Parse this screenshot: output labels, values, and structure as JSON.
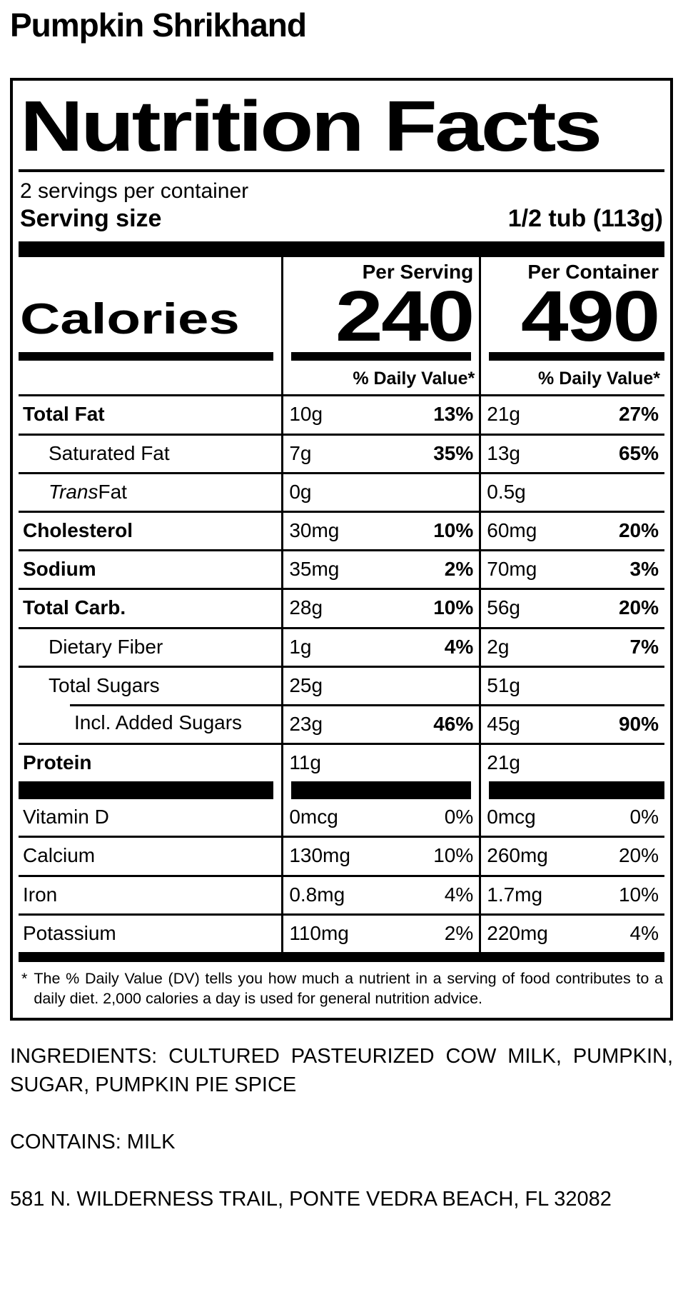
{
  "page": {
    "title": "Pumpkin Shrikhand"
  },
  "colors": {
    "ink": "#000000",
    "paper": "#ffffff"
  },
  "label": {
    "title": "Nutrition Facts",
    "servings_per_container": "2 servings per container",
    "serving_size_label": "Serving size",
    "serving_size_value": "1/2 tub (113g)",
    "calories_label": "Calories",
    "columns": {
      "serving": "Per Serving",
      "container": "Per Container"
    },
    "calories": {
      "per_serving": "240",
      "per_container": "490"
    },
    "daily_value_header": "% Daily Value*",
    "nutrients": [
      {
        "name": "Total Fat",
        "indent": 0,
        "name_bold": true,
        "serving_amount": "10g",
        "serving_dv": "13%",
        "container_amount": "21g",
        "container_dv": "27%",
        "dv_bold": true,
        "line_above": "full"
      },
      {
        "name": "Saturated Fat",
        "indent": 1,
        "name_bold": false,
        "serving_amount": "7g",
        "serving_dv": "35%",
        "container_amount": "13g",
        "container_dv": "65%",
        "dv_bold": true,
        "line_above": "full"
      },
      {
        "name_italic": "Trans",
        "name_rest": " Fat",
        "indent": 1,
        "name_bold": false,
        "serving_amount": "0g",
        "serving_dv": "",
        "container_amount": "0.5g",
        "container_dv": "",
        "dv_bold": false,
        "line_above": "full"
      },
      {
        "name": "Cholesterol",
        "indent": 0,
        "name_bold": true,
        "serving_amount": "30mg",
        "serving_dv": "10%",
        "container_amount": "60mg",
        "container_dv": "20%",
        "dv_bold": true,
        "line_above": "full"
      },
      {
        "name": "Sodium",
        "indent": 0,
        "name_bold": true,
        "serving_amount": "35mg",
        "serving_dv": "2%",
        "container_amount": "70mg",
        "container_dv": "3%",
        "dv_bold": true,
        "line_above": "full"
      },
      {
        "name": "Total Carb.",
        "indent": 0,
        "name_bold": true,
        "serving_amount": "28g",
        "serving_dv": "10%",
        "container_amount": "56g",
        "container_dv": "20%",
        "dv_bold": true,
        "line_above": "full"
      },
      {
        "name": "Dietary Fiber",
        "indent": 1,
        "name_bold": false,
        "serving_amount": "1g",
        "serving_dv": "4%",
        "container_amount": "2g",
        "container_dv": "7%",
        "dv_bold": true,
        "line_above": "full"
      },
      {
        "name": "Total Sugars",
        "indent": 1,
        "name_bold": false,
        "serving_amount": "25g",
        "serving_dv": "",
        "container_amount": "51g",
        "container_dv": "",
        "dv_bold": false,
        "line_above": "full"
      },
      {
        "name": "Incl. Added Sugars",
        "indent": 2,
        "name_bold": false,
        "serving_amount": "23g",
        "serving_dv": "46%",
        "container_amount": "45g",
        "container_dv": "90%",
        "dv_bold": true,
        "line_above": "indented"
      },
      {
        "name": "Protein",
        "indent": 0,
        "name_bold": true,
        "serving_amount": "11g",
        "serving_dv": "",
        "container_amount": "21g",
        "container_dv": "",
        "dv_bold": false,
        "line_above": "full"
      }
    ],
    "vitamins": [
      {
        "name": "Vitamin D",
        "serving_amount": "0mcg",
        "serving_dv": "0%",
        "container_amount": "0mcg",
        "container_dv": "0%",
        "line_above": "none"
      },
      {
        "name": "Calcium",
        "serving_amount": "130mg",
        "serving_dv": "10%",
        "container_amount": "260mg",
        "container_dv": "20%",
        "line_above": "full"
      },
      {
        "name": "Iron",
        "serving_amount": "0.8mg",
        "serving_dv": "4%",
        "container_amount": "1.7mg",
        "container_dv": "10%",
        "line_above": "full"
      },
      {
        "name": "Potassium",
        "serving_amount": "110mg",
        "serving_dv": "2%",
        "container_amount": "220mg",
        "container_dv": "4%",
        "line_above": "full"
      }
    ],
    "footnote_marker": "*",
    "footnote": "The % Daily Value (DV) tells you how much a nutrient in a serving of food contributes to a daily diet. 2,000 calories a day is used for general nutrition advice."
  },
  "details": {
    "ingredients": "INGREDIENTS: CULTURED PASTEURIZED COW MILK, PUMPKIN, SUGAR, PUMPKIN PIE SPICE",
    "contains": "CONTAINS: MILK",
    "address": "581 N. WILDERNESS TRAIL, PONTE VEDRA BEACH, FL 32082"
  }
}
